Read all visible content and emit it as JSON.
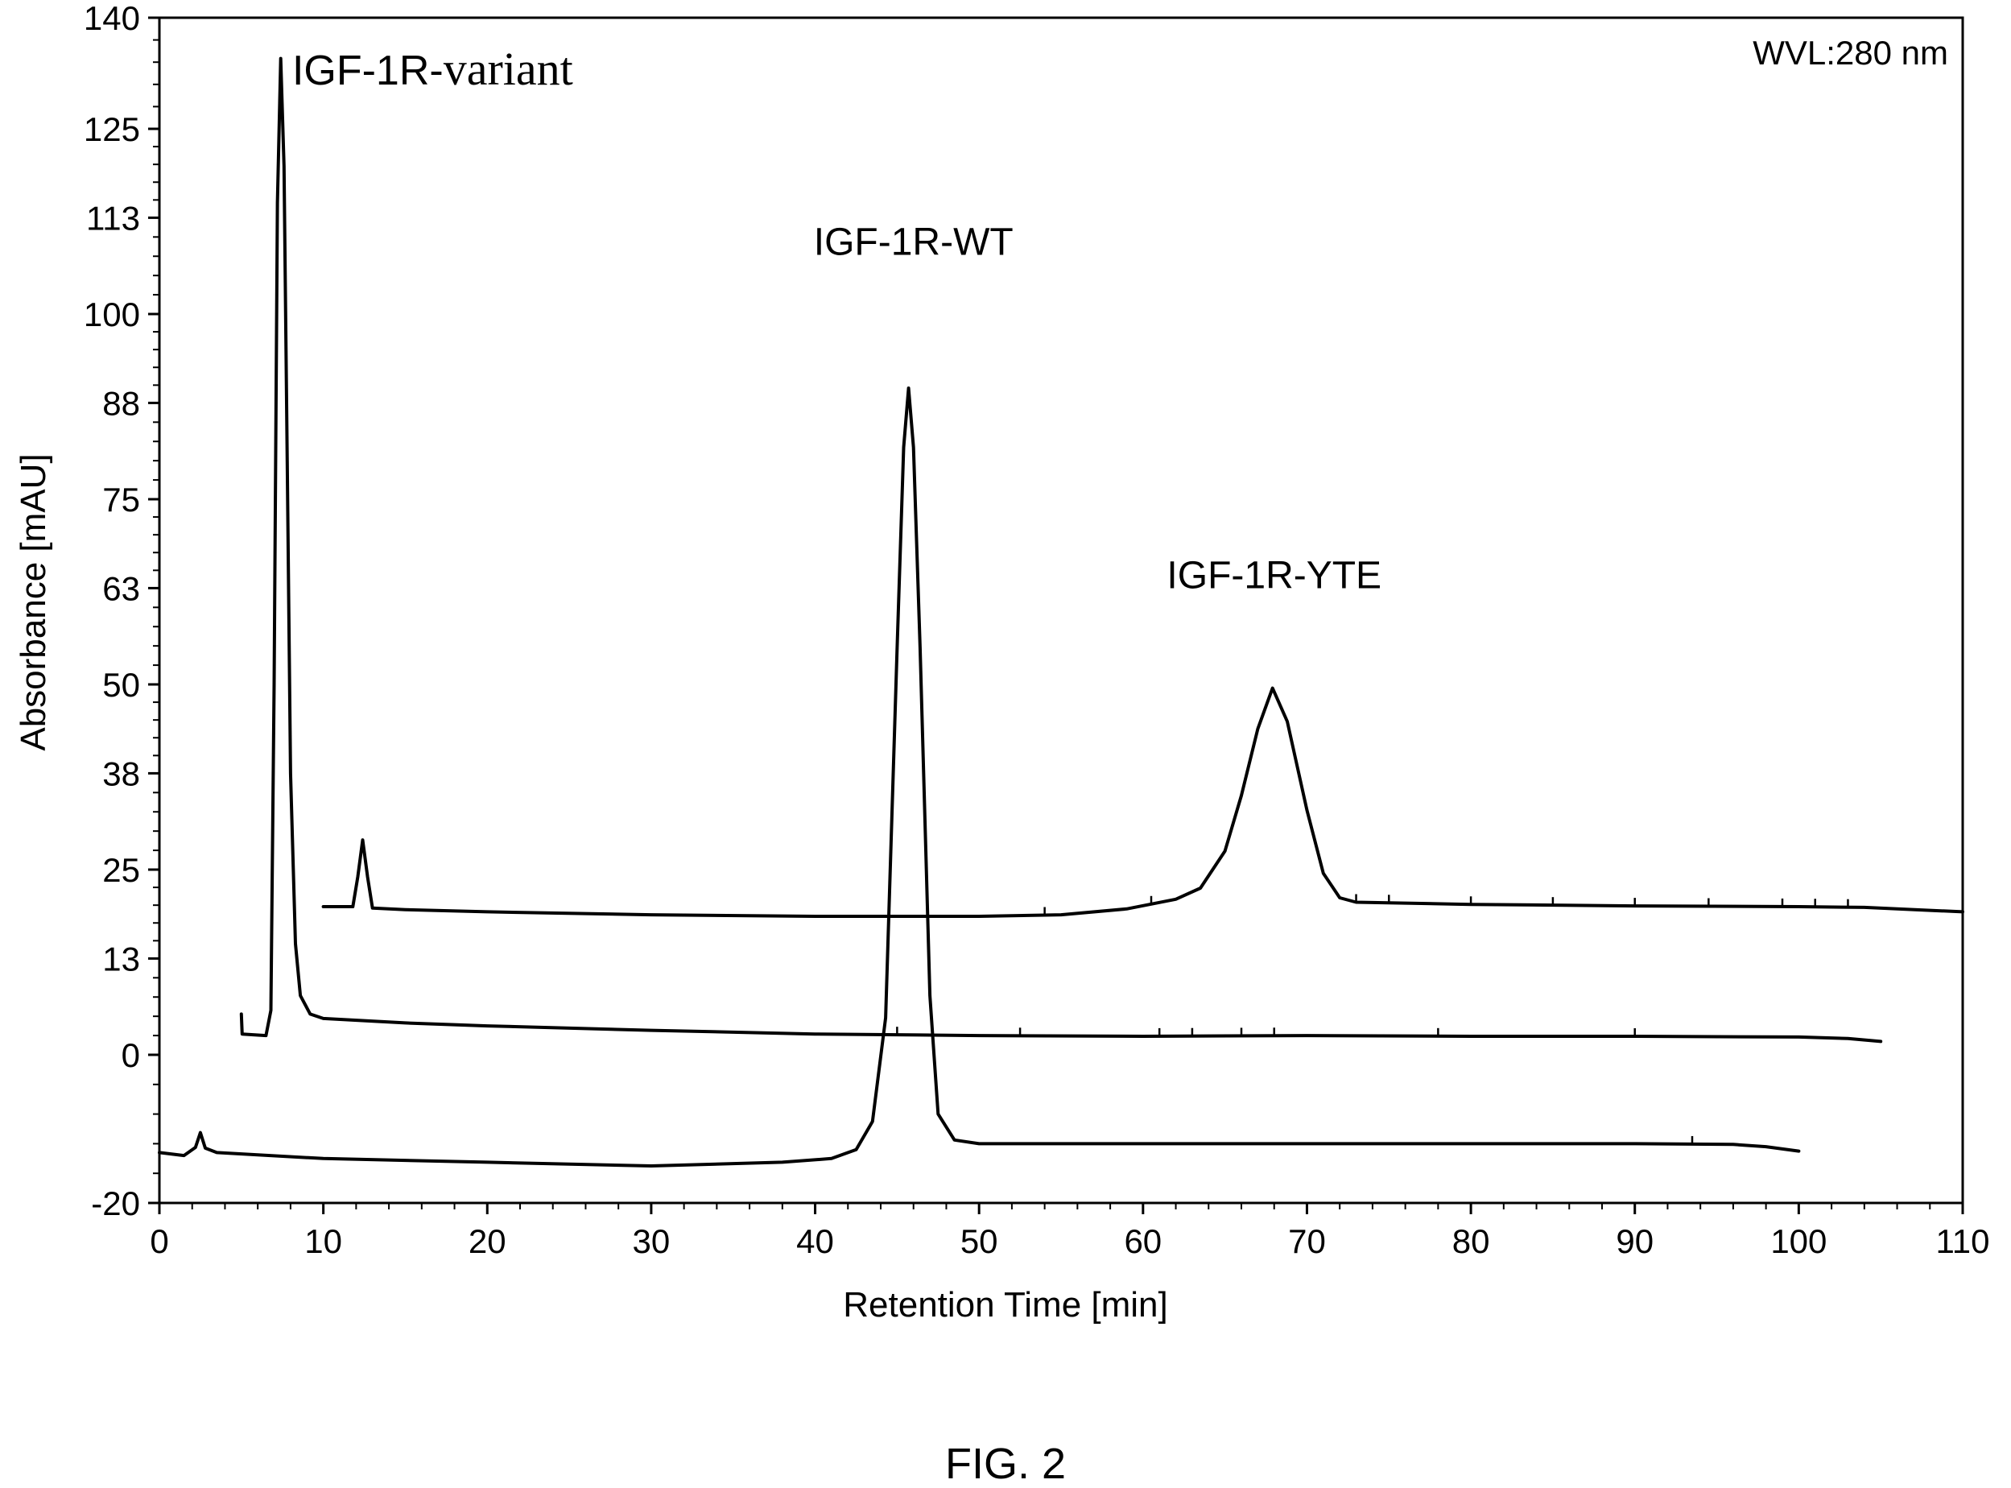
{
  "figure_caption": "FIG. 2",
  "chart_data": {
    "type": "line",
    "title": "",
    "xlabel": "Retention Time [min]",
    "ylabel": "Absorbance [mAU]",
    "xlim": [
      0,
      110
    ],
    "ylim": [
      -20,
      140
    ],
    "x_ticks": [
      0,
      10,
      20,
      30,
      40,
      50,
      60,
      70,
      80,
      90,
      100,
      110
    ],
    "y_ticks": [
      -20,
      0,
      13,
      25,
      38,
      50,
      63,
      75,
      88,
      100,
      113,
      125,
      140
    ],
    "grid": false,
    "legend": "none",
    "annotation_wvl": "WVL:280 nm",
    "line_color": "#000000",
    "series": [
      {
        "name": "IGF-1R-variant",
        "label_style": "mixed",
        "label_prefix": "IGF-1R-",
        "label_suffix": "variant",
        "label_at": [
          8.1,
          131
        ],
        "points": [
          [
            5.0,
            5.5
          ],
          [
            5.05,
            2.8
          ],
          [
            6.5,
            2.6
          ],
          [
            6.8,
            6.0
          ],
          [
            7.0,
            50
          ],
          [
            7.2,
            115
          ],
          [
            7.4,
            134.5
          ],
          [
            7.6,
            120
          ],
          [
            7.8,
            80
          ],
          [
            8.0,
            38
          ],
          [
            8.3,
            15
          ],
          [
            8.6,
            8
          ],
          [
            9.2,
            5.5
          ],
          [
            10.0,
            4.9
          ],
          [
            15,
            4.3
          ],
          [
            20,
            3.9
          ],
          [
            30,
            3.3
          ],
          [
            40,
            2.8
          ],
          [
            50,
            2.6
          ],
          [
            60,
            2.5
          ],
          [
            70,
            2.6
          ],
          [
            80,
            2.5
          ],
          [
            90,
            2.5
          ],
          [
            100,
            2.4
          ],
          [
            103,
            2.2
          ],
          [
            105,
            1.8
          ]
        ],
        "noise_at": [
          45,
          52.5,
          61,
          63,
          66,
          68,
          78,
          90
        ]
      },
      {
        "name": "IGF-1R-WT",
        "label_style": "sans",
        "label_at": [
          46,
          108
        ],
        "points": [
          [
            0,
            -13.2
          ],
          [
            1.5,
            -13.6
          ],
          [
            2.2,
            -12.5
          ],
          [
            2.5,
            -10.5
          ],
          [
            2.8,
            -12.6
          ],
          [
            3.5,
            -13.2
          ],
          [
            10,
            -14.0
          ],
          [
            20,
            -14.5
          ],
          [
            30,
            -15.0
          ],
          [
            38,
            -14.5
          ],
          [
            41,
            -14.0
          ],
          [
            42.5,
            -12.8
          ],
          [
            43.5,
            -9.0
          ],
          [
            44.3,
            5.0
          ],
          [
            45.0,
            55
          ],
          [
            45.4,
            82
          ],
          [
            45.7,
            90
          ],
          [
            46.0,
            82
          ],
          [
            46.4,
            55
          ],
          [
            47.0,
            8
          ],
          [
            47.5,
            -8.0
          ],
          [
            48.5,
            -11.5
          ],
          [
            50,
            -12.0
          ],
          [
            60,
            -12.0
          ],
          [
            70,
            -12.0
          ],
          [
            80,
            -12.0
          ],
          [
            90,
            -12.0
          ],
          [
            96,
            -12.1
          ],
          [
            98,
            -12.4
          ],
          [
            100,
            -13.0
          ]
        ],
        "noise_at": [
          93.5
        ]
      },
      {
        "name": "IGF-1R-YTE",
        "label_style": "sans",
        "label_at": [
          68,
          63
        ],
        "points": [
          [
            10.0,
            20.0
          ],
          [
            11.8,
            20.0
          ],
          [
            12.1,
            24.0
          ],
          [
            12.4,
            29.0
          ],
          [
            12.7,
            24.0
          ],
          [
            13.0,
            19.8
          ],
          [
            15,
            19.6
          ],
          [
            20,
            19.3
          ],
          [
            30,
            18.9
          ],
          [
            40,
            18.7
          ],
          [
            50,
            18.7
          ],
          [
            55,
            18.9
          ],
          [
            59,
            19.7
          ],
          [
            62,
            21.0
          ],
          [
            63.5,
            22.5
          ],
          [
            65,
            27.5
          ],
          [
            66,
            35.0
          ],
          [
            67,
            44.0
          ],
          [
            67.9,
            49.5
          ],
          [
            68.8,
            45.0
          ],
          [
            70,
            33.0
          ],
          [
            71,
            24.5
          ],
          [
            72,
            21.2
          ],
          [
            73,
            20.6
          ],
          [
            80,
            20.3
          ],
          [
            90,
            20.1
          ],
          [
            100,
            20.0
          ],
          [
            104,
            19.9
          ],
          [
            108,
            19.5
          ],
          [
            110,
            19.3
          ]
        ],
        "noise_at": [
          54,
          60.5,
          73,
          75,
          80,
          85,
          90,
          94.5,
          99,
          101,
          103
        ]
      }
    ]
  }
}
